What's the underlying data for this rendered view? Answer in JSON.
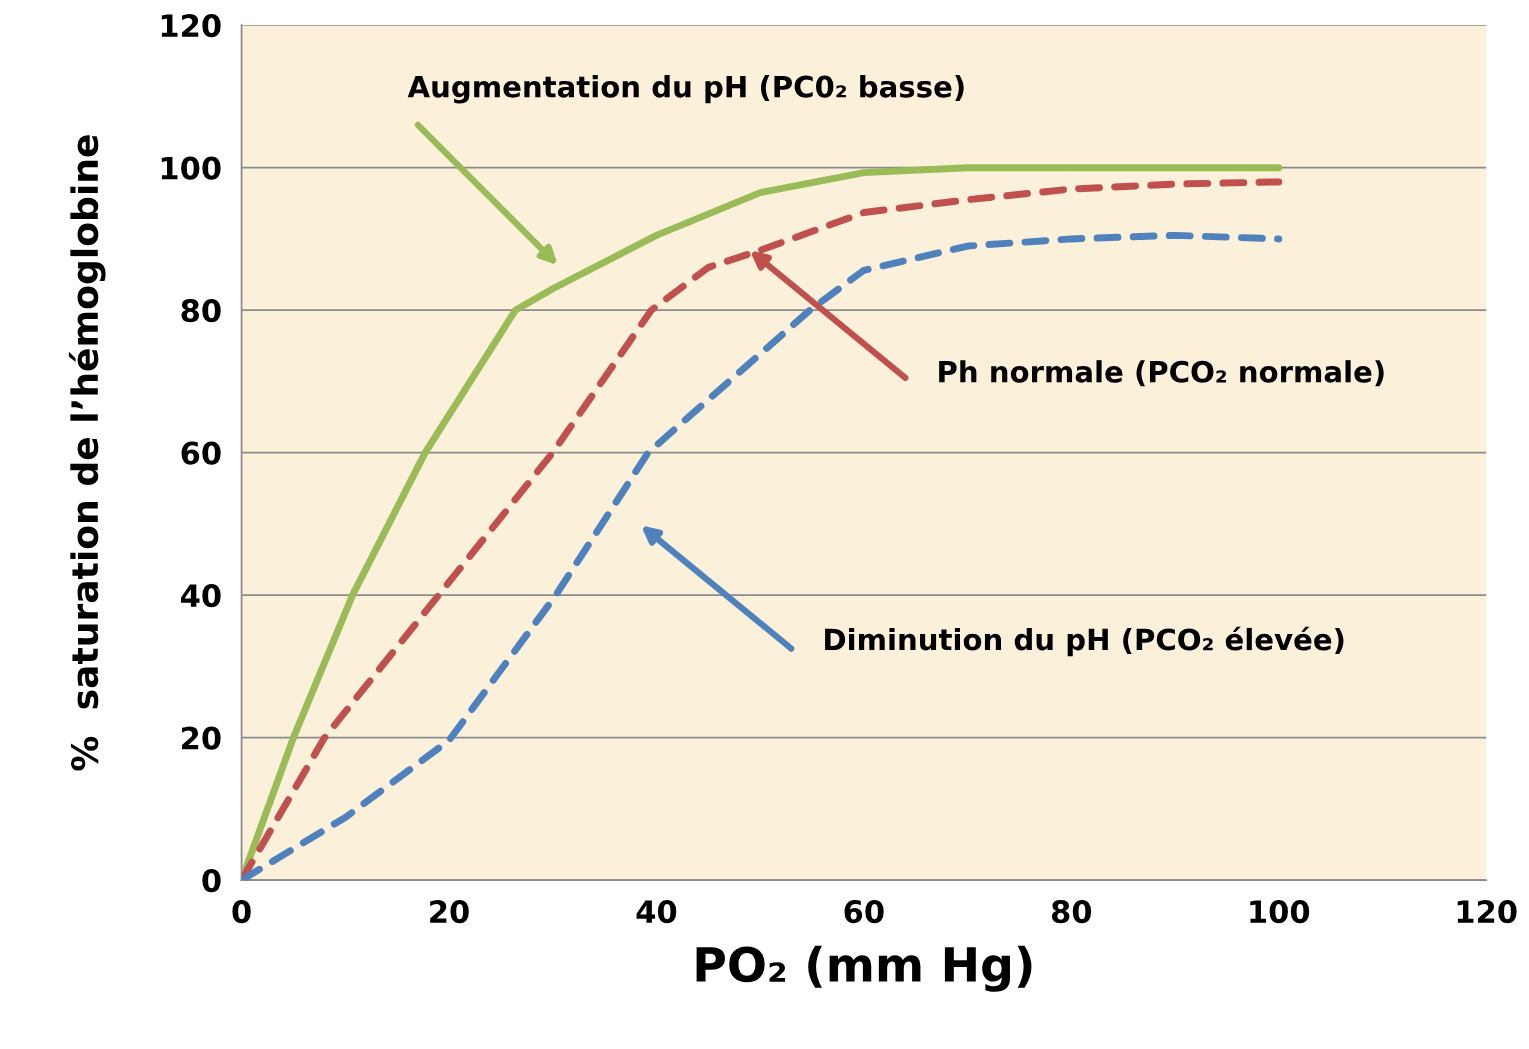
{
  "chart_data": {
    "type": "line",
    "xlabel": "PO₂ (mm Hg)",
    "ylabel": "%  saturation de l’hémoglobine",
    "xlim": [
      0,
      120
    ],
    "xticks": [
      0,
      20,
      40,
      60,
      80,
      100,
      120
    ],
    "ylim": [
      0,
      120
    ],
    "yticks": [
      0,
      20,
      40,
      60,
      80,
      100,
      120
    ],
    "grid": "y",
    "series": [
      {
        "color": "#9bbb59",
        "line_style": "solid",
        "x": [
          0,
          5,
          10.7,
          17.7,
          26.4,
          30,
          40,
          50,
          60,
          70,
          80,
          100
        ],
        "values": [
          0,
          20,
          40,
          60,
          80,
          83,
          90.5,
          96.5,
          99.3,
          100,
          100,
          100
        ]
      },
      {
        "color": "#c0504d",
        "line_style": "dashed",
        "x": [
          0,
          8,
          19,
          30,
          39.5,
          45,
          50,
          60,
          70,
          80,
          90,
          100
        ],
        "values": [
          0,
          20,
          40,
          60,
          80,
          86,
          88.4,
          93.7,
          95.5,
          97,
          97.7,
          98
        ]
      },
      {
        "color": "#4f81bd",
        "line_style": "dashed",
        "x": [
          0,
          10,
          20,
          30.3,
          39.2,
          54.8,
          60,
          70,
          80,
          90,
          100
        ],
        "values": [
          0,
          8.8,
          19.6,
          40,
          60,
          80,
          85.6,
          89,
          90,
          90.5,
          90
        ]
      }
    ],
    "annotations": [
      "Augmentation du pH (PC0₂ basse)",
      "Ph normale (PCO₂ normale)",
      "Diminution du pH (PCO₂ élevée)"
    ]
  }
}
